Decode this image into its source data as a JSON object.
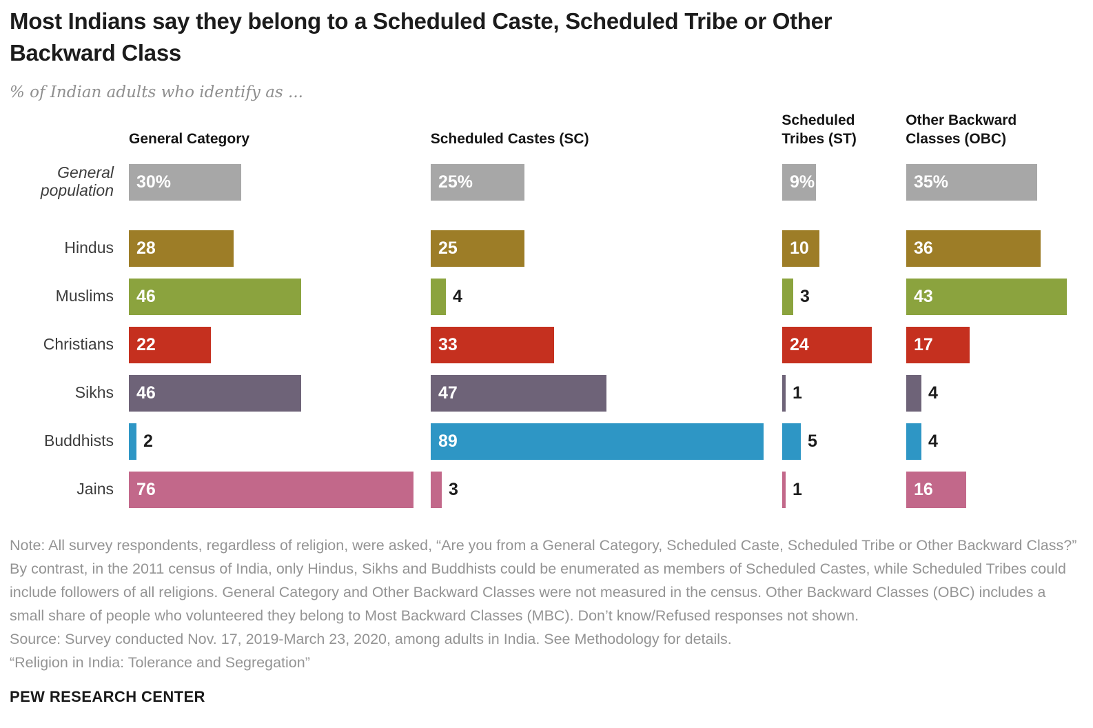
{
  "header": {
    "title_lines": [
      "Most Indians say they belong to a Scheduled Caste, Scheduled Tribe or Other",
      "Backward Class"
    ],
    "subtitle": "% of Indian adults who identify as ..."
  },
  "chart_data": {
    "type": "bar",
    "orientation": "horizontal",
    "unit": "% of adults",
    "xlim": [
      0,
      100
    ],
    "columns": [
      {
        "key": "gc",
        "label": "General Category"
      },
      {
        "key": "sc",
        "label": "Scheduled Castes (SC)"
      },
      {
        "key": "st",
        "label": "Scheduled Tribes (ST)"
      },
      {
        "key": "obc",
        "label": "Other Backward Classes (OBC)"
      }
    ],
    "rows": [
      {
        "label": "General population",
        "italic": true,
        "color": "#a7a7a7",
        "values": [
          30,
          25,
          9,
          35
        ],
        "display": [
          "30%",
          "25%",
          "9%",
          "35%"
        ]
      },
      {
        "label": "Hindus",
        "italic": false,
        "color": "#9d7d27",
        "values": [
          28,
          25,
          10,
          36
        ],
        "display": [
          "28",
          "25",
          "10",
          "36"
        ]
      },
      {
        "label": "Muslims",
        "italic": false,
        "color": "#8ba33e",
        "values": [
          46,
          4,
          3,
          43
        ],
        "display": [
          "46",
          "4",
          "3",
          "43"
        ]
      },
      {
        "label": "Christians",
        "italic": false,
        "color": "#c5301f",
        "values": [
          22,
          33,
          24,
          17
        ],
        "display": [
          "22",
          "33",
          "24",
          "17"
        ]
      },
      {
        "label": "Sikhs",
        "italic": false,
        "color": "#6e6378",
        "values": [
          46,
          47,
          1,
          4
        ],
        "display": [
          "46",
          "47",
          "1",
          "4"
        ]
      },
      {
        "label": "Buddhists",
        "italic": false,
        "color": "#2e96c5",
        "values": [
          2,
          89,
          5,
          4
        ],
        "display": [
          "2",
          "89",
          "5",
          "4"
        ]
      },
      {
        "label": "Jains",
        "italic": false,
        "color": "#c2688a",
        "values": [
          76,
          3,
          1,
          16
        ],
        "display": [
          "76",
          "3",
          "1",
          "16"
        ]
      }
    ]
  },
  "footer": {
    "note": "Note: All survey respondents, regardless of religion, were asked, “Are you from a General Category, Scheduled Caste, Scheduled Tribe or Other Backward Class?” By contrast, in the 2011 census of India, only Hindus, Sikhs and Buddhists could be enumerated as members of Scheduled Castes, while Scheduled Tribes could include followers of all religions. General Category and Other Backward Classes were not measured in the census. Other Backward Classes (OBC) includes a small share of people who volunteered they belong to Most Backward Classes (MBC). Don’t know/Refused responses not shown.",
    "source": "Source: Survey conducted Nov. 17, 2019-March 23, 2020, among adults in India. See Methodology for details.",
    "citation": "“Religion in India: Tolerance and Segregation”",
    "brand": "PEW RESEARCH CENTER"
  }
}
